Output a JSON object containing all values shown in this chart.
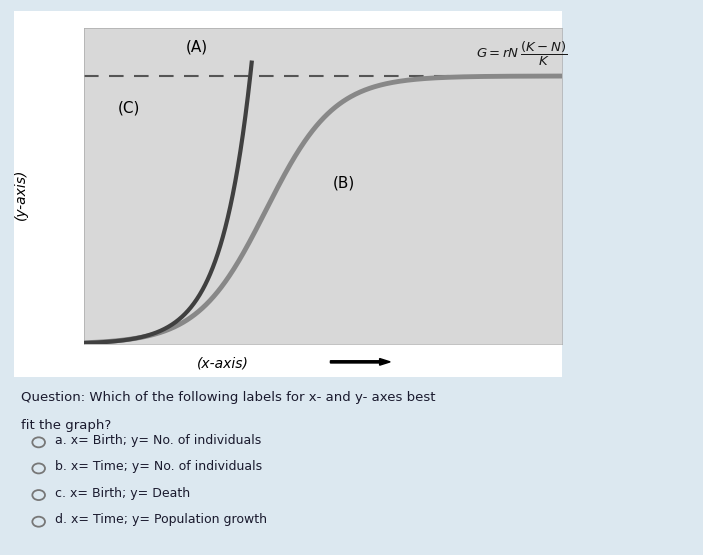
{
  "bg_outer": "#dce8f0",
  "bg_white_panel": "#ffffff",
  "chart_bg": "#d8d8d8",
  "curve_A_color": "#404040",
  "curve_B_color": "#888888",
  "dashed_color": "#555555",
  "label_A": "(A)",
  "label_B": "(B)",
  "label_C": "(C)",
  "xaxis_label": "(x-axis)",
  "yaxis_label": "(y-axis)",
  "question_line1": "Question: Which of the following labels for x- and y- axes best",
  "question_line2": "fit the graph?",
  "options": [
    [
      "a",
      ". x= ",
      "Birth",
      "; y= ",
      "No. of individuals"
    ],
    [
      "b",
      ". x= ",
      "Time",
      "; y= ",
      "No. of individuals"
    ],
    [
      "c",
      ". x= ",
      "Birth",
      "; y= ",
      "Death"
    ],
    [
      "d",
      ". x= ",
      "Time",
      "; y= ",
      "Population",
      " growth"
    ]
  ],
  "text_color": "#1a1a2e",
  "question_color": "#1a1a2e"
}
